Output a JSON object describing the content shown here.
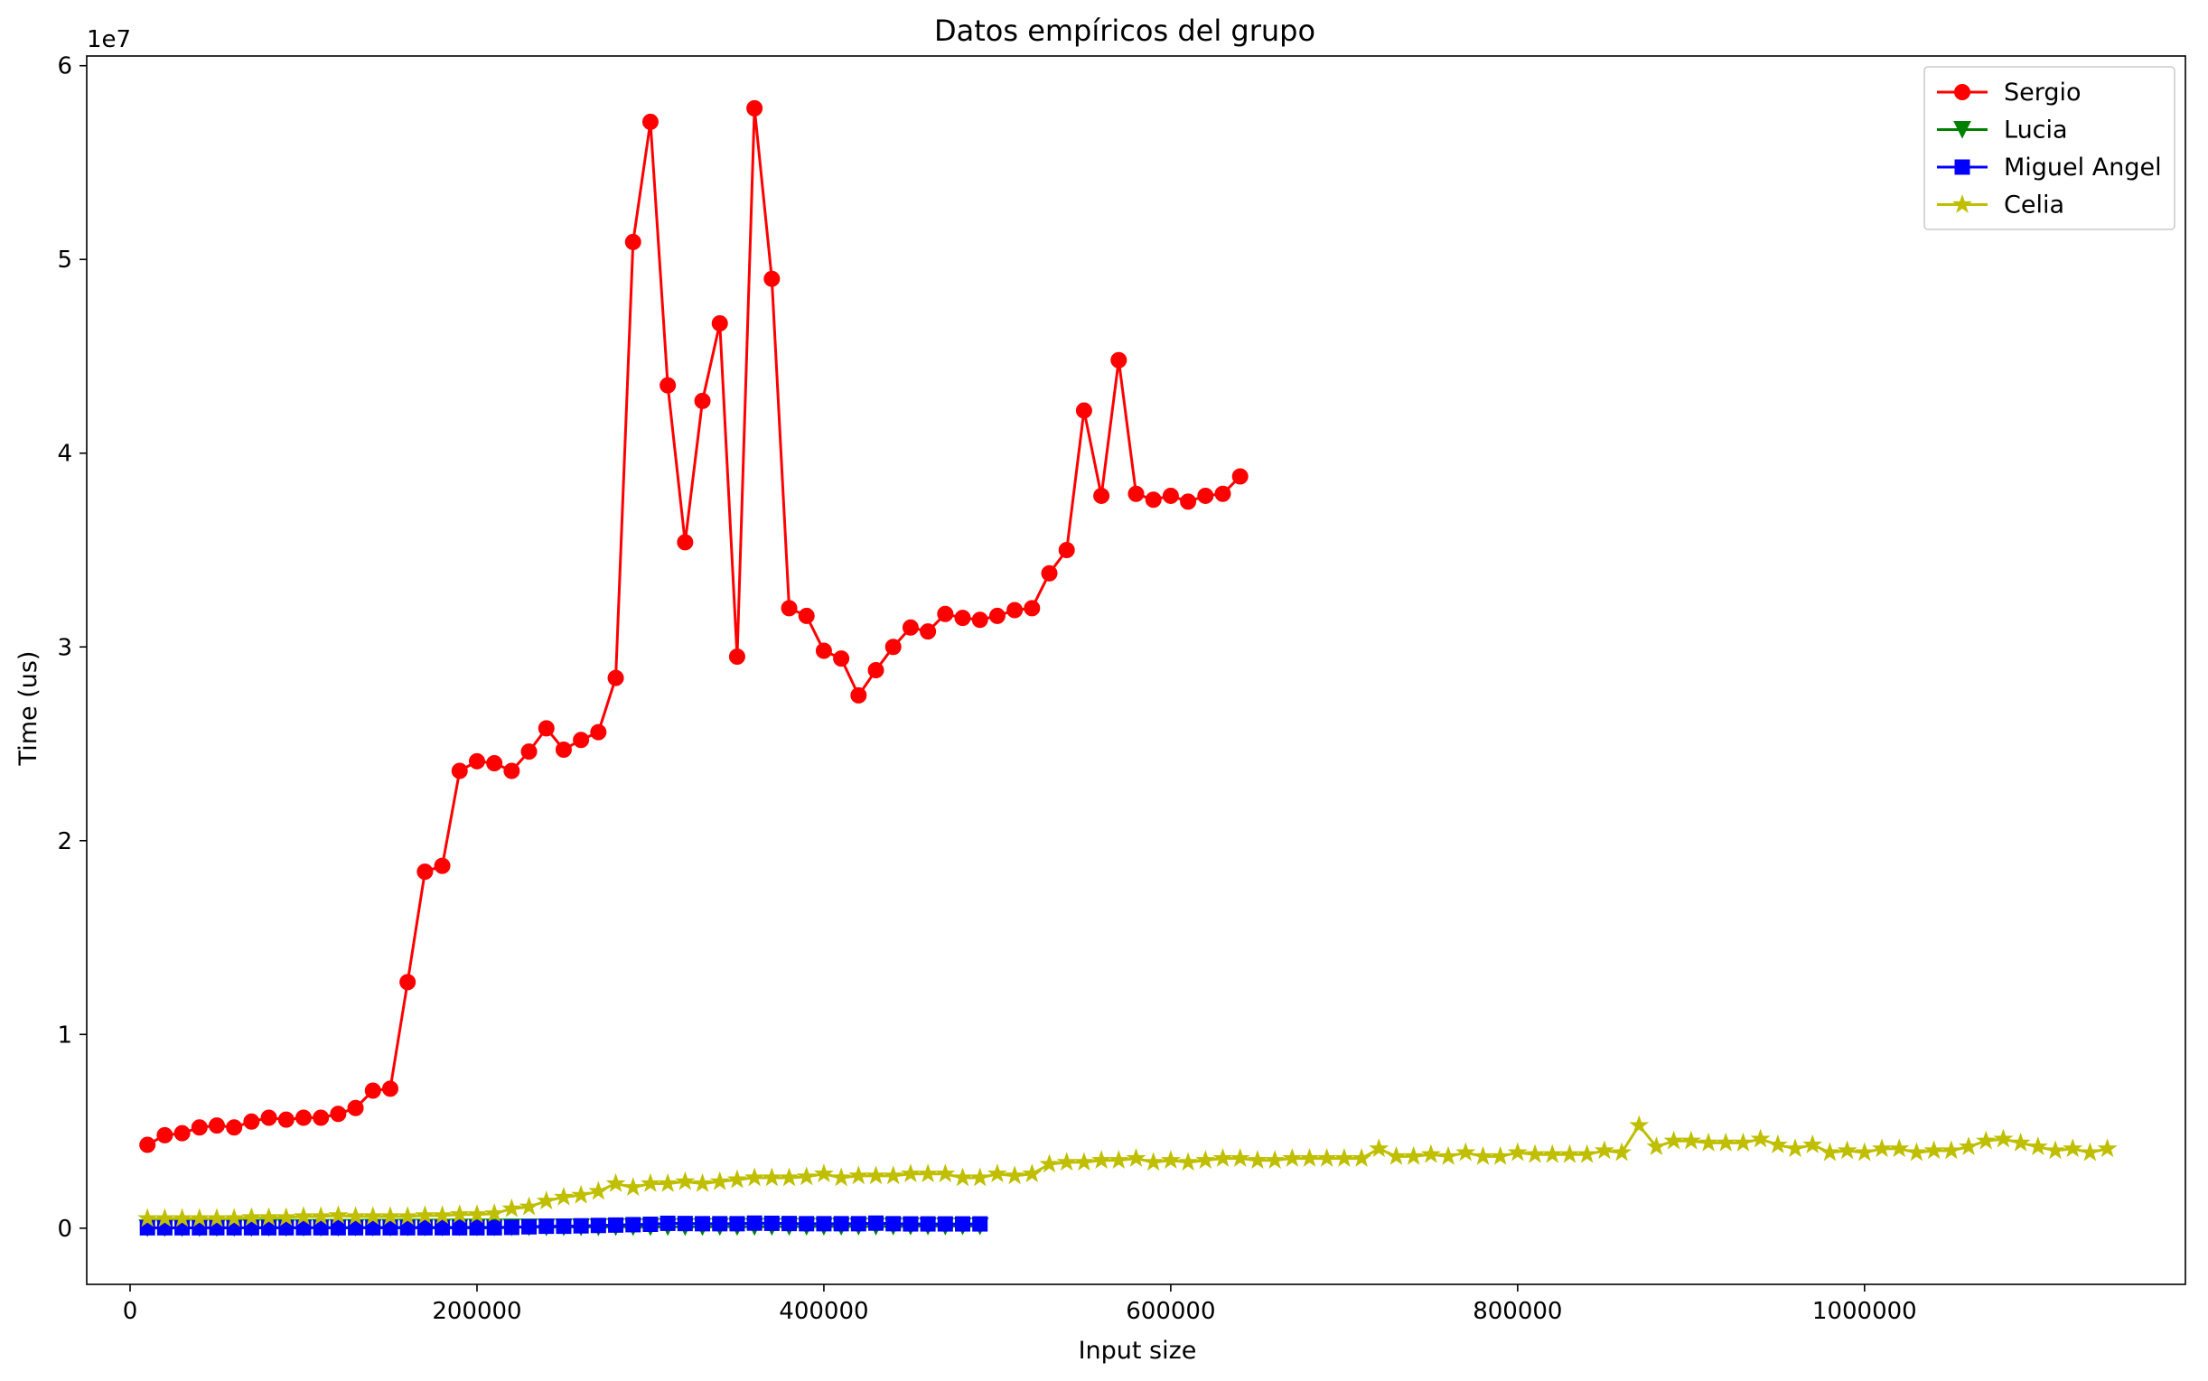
{
  "chart_data": {
    "type": "line",
    "title": "Datos empíricos del grupo",
    "xlabel": "Input size",
    "ylabel": "Time (us)",
    "y_offset_label": "1e7",
    "xlim": [
      -25000,
      1185000
    ],
    "ylim": [
      -2900000,
      60500000
    ],
    "x_ticks": [
      0,
      200000,
      400000,
      600000,
      800000,
      1000000
    ],
    "x_tick_labels": [
      "0",
      "200000",
      "400000",
      "600000",
      "800000",
      "1000000"
    ],
    "y_ticks": [
      0,
      10000000,
      20000000,
      30000000,
      40000000,
      50000000,
      60000000
    ],
    "y_tick_labels": [
      "0",
      "1",
      "2",
      "3",
      "4",
      "5",
      "6"
    ],
    "grid": false,
    "legend_position": "top-right",
    "series": [
      {
        "name": "Sergio",
        "color": "#ff0000",
        "marker": "circle",
        "x": [
          10000,
          20000,
          30000,
          40000,
          50000,
          60000,
          70000,
          80000,
          90000,
          100000,
          110000,
          120000,
          130000,
          140000,
          150000,
          160000,
          170000,
          180000,
          190000,
          200000,
          210000,
          220000,
          230000,
          240000,
          250000,
          260000,
          270000,
          280000,
          290000,
          300000,
          310000,
          320000,
          330000,
          340000,
          350000,
          360000,
          370000,
          380000,
          390000,
          400000,
          410000,
          420000,
          430000,
          440000,
          450000,
          460000,
          470000,
          480000,
          490000,
          500000,
          510000,
          520000,
          530000,
          540000,
          550000,
          560000,
          570000,
          580000,
          590000,
          600000,
          610000,
          620000,
          630000,
          640000
        ],
        "y": [
          4300000,
          4800000,
          4900000,
          5200000,
          5300000,
          5200000,
          5500000,
          5700000,
          5600000,
          5700000,
          5700000,
          5900000,
          6200000,
          7100000,
          7200000,
          12700000,
          18400000,
          18700000,
          23600000,
          24100000,
          24000000,
          23600000,
          24600000,
          25800000,
          24700000,
          25200000,
          25600000,
          28400000,
          50900000,
          57100000,
          43500000,
          35400000,
          42700000,
          46700000,
          29500000,
          57800000,
          49000000,
          32000000,
          31600000,
          29800000,
          29400000,
          27500000,
          28800000,
          30000000,
          31000000,
          30800000,
          31700000,
          31500000,
          31400000,
          31600000,
          31900000,
          32000000,
          33800000,
          35000000,
          42200000,
          37800000,
          44800000,
          37900000,
          37600000,
          37800000,
          37500000,
          37800000,
          37900000,
          38800000
        ]
      },
      {
        "name": "Lucia",
        "color": "#008000",
        "marker": "triangle-down",
        "x": [
          10000,
          20000,
          30000,
          40000,
          50000,
          60000,
          70000,
          80000,
          90000,
          100000,
          110000,
          120000,
          130000,
          140000,
          150000,
          160000,
          170000,
          180000,
          190000,
          200000,
          210000,
          220000,
          230000,
          240000,
          250000,
          260000,
          270000,
          280000,
          290000,
          300000,
          310000,
          320000,
          330000,
          340000,
          350000,
          360000,
          370000,
          380000,
          390000,
          400000,
          410000,
          420000,
          430000,
          440000,
          450000,
          460000,
          470000,
          480000,
          490000
        ],
        "y": [
          10000,
          12000,
          14000,
          16000,
          18000,
          20000,
          22000,
          24000,
          26000,
          28000,
          30000,
          32000,
          34000,
          36000,
          38000,
          40000,
          42000,
          44000,
          46000,
          48000,
          50000,
          52000,
          54000,
          56000,
          58000,
          60000,
          62000,
          64000,
          66000,
          68000,
          70000,
          72000,
          74000,
          76000,
          78000,
          80000,
          82000,
          84000,
          86000,
          88000,
          90000,
          92000,
          94000,
          96000,
          98000,
          100000,
          102000,
          104000,
          106000
        ]
      },
      {
        "name": "Miguel Angel",
        "color": "#0000ff",
        "marker": "square",
        "x": [
          10000,
          20000,
          30000,
          40000,
          50000,
          60000,
          70000,
          80000,
          90000,
          100000,
          110000,
          120000,
          130000,
          140000,
          150000,
          160000,
          170000,
          180000,
          190000,
          200000,
          210000,
          220000,
          230000,
          240000,
          250000,
          260000,
          270000,
          280000,
          290000,
          300000,
          310000,
          320000,
          330000,
          340000,
          350000,
          360000,
          370000,
          380000,
          390000,
          400000,
          410000,
          420000,
          430000,
          440000,
          450000,
          460000,
          470000,
          480000,
          490000
        ],
        "y": [
          20000,
          20000,
          20000,
          20000,
          20000,
          20000,
          20000,
          20000,
          20000,
          20000,
          20000,
          20000,
          20000,
          20000,
          20000,
          20000,
          20000,
          20000,
          20000,
          20000,
          20000,
          40000,
          70000,
          100000,
          100000,
          120000,
          140000,
          160000,
          180000,
          200000,
          250000,
          240000,
          230000,
          230000,
          230000,
          260000,
          250000,
          240000,
          230000,
          230000,
          230000,
          230000,
          260000,
          230000,
          220000,
          220000,
          220000,
          220000,
          220000
        ]
      },
      {
        "name": "Celia",
        "color": "#bfbf00",
        "marker": "star",
        "x": [
          10000,
          20000,
          30000,
          40000,
          50000,
          60000,
          70000,
          80000,
          90000,
          100000,
          110000,
          120000,
          130000,
          140000,
          150000,
          160000,
          170000,
          180000,
          190000,
          200000,
          210000,
          220000,
          230000,
          240000,
          250000,
          260000,
          270000,
          280000,
          290000,
          300000,
          310000,
          320000,
          330000,
          340000,
          350000,
          360000,
          370000,
          380000,
          390000,
          400000,
          410000,
          420000,
          430000,
          440000,
          450000,
          460000,
          470000,
          480000,
          490000,
          500000,
          510000,
          520000,
          530000,
          540000,
          550000,
          560000,
          570000,
          580000,
          590000,
          600000,
          610000,
          620000,
          630000,
          640000,
          650000,
          660000,
          670000,
          680000,
          690000,
          700000,
          710000,
          720000,
          730000,
          740000,
          750000,
          760000,
          770000,
          780000,
          790000,
          800000,
          810000,
          820000,
          830000,
          840000,
          850000,
          860000,
          870000,
          880000,
          890000,
          900000,
          910000,
          920000,
          930000,
          940000,
          950000,
          960000,
          970000,
          980000,
          990000,
          1000000,
          1010000,
          1020000,
          1030000,
          1040000,
          1050000,
          1060000,
          1070000,
          1080000,
          1090000,
          1100000,
          1110000,
          1120000,
          1130000,
          1140000
        ],
        "y": [
          500000,
          500000,
          500000,
          500000,
          500000,
          500000,
          550000,
          550000,
          550000,
          600000,
          600000,
          650000,
          600000,
          600000,
          600000,
          600000,
          650000,
          650000,
          700000,
          700000,
          750000,
          1000000,
          1100000,
          1400000,
          1600000,
          1700000,
          1900000,
          2300000,
          2100000,
          2300000,
          2300000,
          2400000,
          2300000,
          2400000,
          2500000,
          2600000,
          2600000,
          2600000,
          2650000,
          2800000,
          2600000,
          2700000,
          2700000,
          2700000,
          2800000,
          2800000,
          2800000,
          2600000,
          2600000,
          2800000,
          2700000,
          2800000,
          3300000,
          3400000,
          3400000,
          3500000,
          3500000,
          3600000,
          3400000,
          3500000,
          3400000,
          3500000,
          3600000,
          3600000,
          3500000,
          3500000,
          3600000,
          3600000,
          3600000,
          3600000,
          3600000,
          4100000,
          3700000,
          3700000,
          3800000,
          3700000,
          3900000,
          3700000,
          3700000,
          3900000,
          3800000,
          3800000,
          3800000,
          3800000,
          4000000,
          3900000,
          5300000,
          4200000,
          4500000,
          4500000,
          4400000,
          4400000,
          4400000,
          4600000,
          4300000,
          4100000,
          4300000,
          3900000,
          4000000,
          3900000,
          4100000,
          4100000,
          3900000,
          4000000,
          4000000,
          4200000,
          4500000,
          4600000,
          4400000,
          4200000,
          4000000,
          4100000,
          3900000,
          4100000
        ]
      }
    ]
  }
}
